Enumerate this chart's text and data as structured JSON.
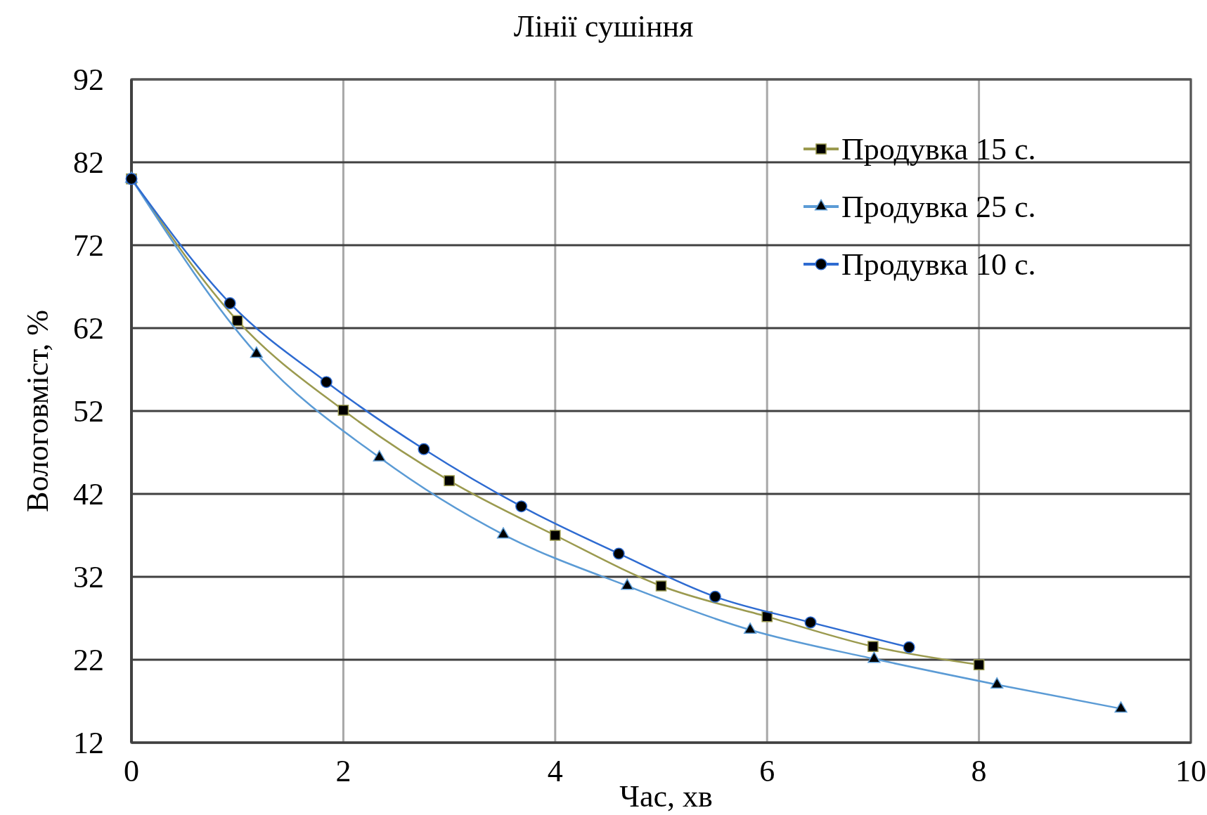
{
  "chart_data": {
    "type": "line",
    "title": "Лінії сушіння",
    "xlabel": "Час, хв",
    "ylabel": "Вологовміст, %",
    "series": [
      {
        "name": "Продувка 15 с.",
        "color": "#9b9a4f",
        "marker": "square",
        "x": [
          0,
          1,
          2,
          3,
          4,
          5,
          6,
          7,
          8
        ],
        "values": [
          80,
          62.9,
          52.1,
          43.6,
          37,
          30.9,
          27.2,
          23.6,
          21.4
        ]
      },
      {
        "name": "Продувка 25 с.",
        "color": "#5b9bd5",
        "marker": "triangle",
        "x": [
          0,
          1.18,
          2.34,
          3.51,
          4.68,
          5.84,
          7.01,
          8.17,
          9.34
        ],
        "values": [
          80,
          58.9,
          46.4,
          37.1,
          30.9,
          25.6,
          22.1,
          19.0,
          16.1
        ]
      },
      {
        "name": "Продувка 10 с.",
        "color": "#2e6bd1",
        "marker": "circle",
        "x": [
          0,
          0.93,
          1.84,
          2.76,
          3.68,
          4.6,
          5.51,
          6.41,
          7.34
        ],
        "values": [
          80,
          65,
          55.5,
          47.4,
          40.5,
          34.8,
          29.6,
          26.5,
          23.5
        ]
      }
    ],
    "xlim": [
      0,
      10
    ],
    "xticks": [
      0,
      2,
      4,
      6,
      8,
      10
    ],
    "ylim": [
      12,
      92
    ],
    "yticks": [
      12,
      22,
      32,
      42,
      52,
      62,
      72,
      82,
      92
    ],
    "grid": true,
    "legend": "top right",
    "line_style": "solid"
  }
}
